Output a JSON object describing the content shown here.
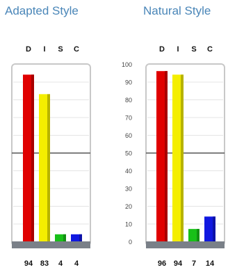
{
  "colors": {
    "D": "#e00000",
    "I": "#f4ee00",
    "S": "#18c018",
    "C": "#1018e0",
    "base": "#7a8088",
    "midline": "#555555",
    "frame": "#c8c8c8",
    "title": "#4a86b8"
  },
  "chart_data": [
    {
      "type": "bar",
      "title": "Adapted Style",
      "categories": [
        "D",
        "I",
        "S",
        "C"
      ],
      "values": [
        94,
        83,
        4,
        4
      ],
      "ylim": [
        0,
        100
      ],
      "midline": 50,
      "grid": true,
      "show_y_ticks": false
    },
    {
      "type": "bar",
      "title": "Natural Style",
      "categories": [
        "D",
        "I",
        "S",
        "C"
      ],
      "values": [
        96,
        94,
        7,
        14
      ],
      "ylim": [
        0,
        100
      ],
      "midline": 50,
      "grid": true,
      "show_y_ticks": true,
      "y_ticks": [
        "0",
        "10",
        "20",
        "30",
        "40",
        "50",
        "60",
        "70",
        "80",
        "90",
        "100"
      ]
    }
  ]
}
